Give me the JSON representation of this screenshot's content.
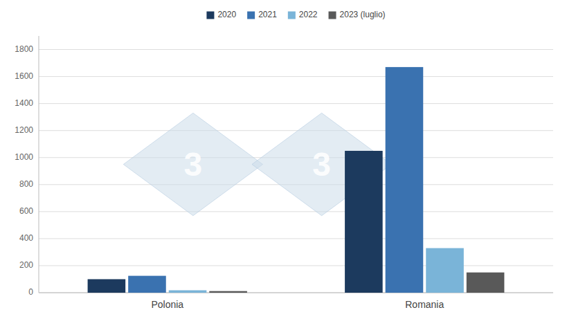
{
  "chart_data": {
    "type": "bar",
    "categories": [
      "Polonia",
      "Romania"
    ],
    "series": [
      {
        "name": "2020",
        "color": "#1c3a5e",
        "values": [
          100,
          1050
        ]
      },
      {
        "name": "2021",
        "color": "#3a72b0",
        "values": [
          125,
          1670
        ]
      },
      {
        "name": "2022",
        "color": "#7ab4d8",
        "values": [
          18,
          330
        ]
      },
      {
        "name": "2023 (luglio)",
        "color": "#595959",
        "values": [
          12,
          150
        ]
      }
    ],
    "ylim": [
      0,
      1900
    ],
    "yticks": [
      0,
      200,
      400,
      600,
      800,
      1000,
      1200,
      1400,
      1600,
      1800
    ],
    "grid": true,
    "legend": "top",
    "annotations": [
      "3",
      "3"
    ]
  }
}
